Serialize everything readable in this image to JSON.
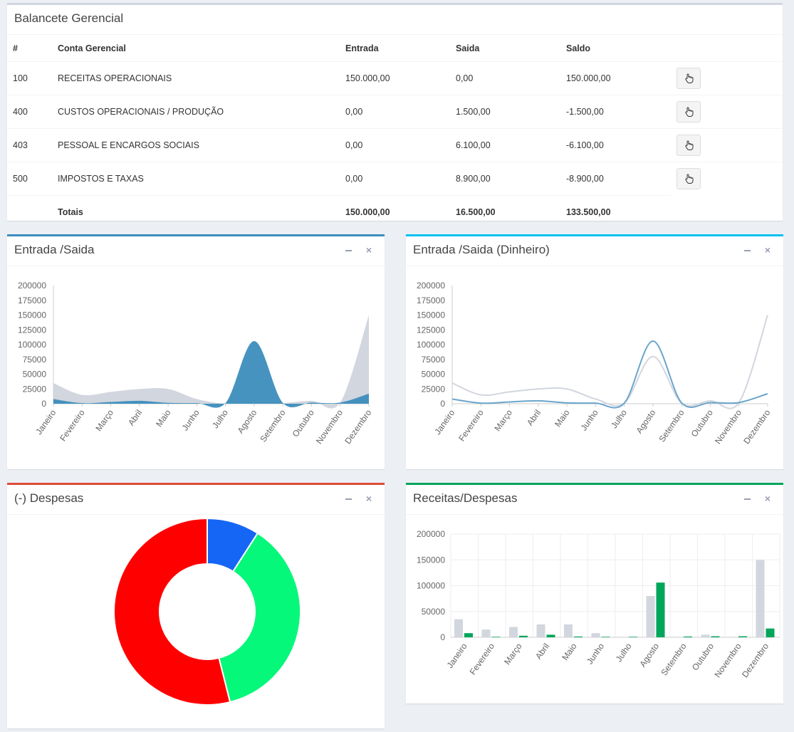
{
  "balancete": {
    "title": "Balancete Gerencial",
    "headers": [
      "#",
      "Conta Gerencial",
      "Entrada",
      "Saida",
      "Saldo"
    ],
    "rows": [
      {
        "code": "100",
        "account": "RECEITAS OPERACIONAIS",
        "entrada": "150.000,00",
        "saida": "0,00",
        "saldo": "150.000,00"
      },
      {
        "code": "400",
        "account": "CUSTOS OPERACIONAIS / PRODUÇÃO",
        "entrada": "0,00",
        "saida": "1.500,00",
        "saldo": "-1.500,00"
      },
      {
        "code": "403",
        "account": "PESSOAL E ENCARGOS SOCIAIS",
        "entrada": "0,00",
        "saida": "6.100,00",
        "saldo": "-6.100,00"
      },
      {
        "code": "500",
        "account": "IMPOSTOS E TAXAS",
        "entrada": "0,00",
        "saida": "8.900,00",
        "saldo": "-8.900,00"
      }
    ],
    "totals": {
      "label": "Totais",
      "entrada": "150.000,00",
      "saida": "16.500,00",
      "saldo": "133.500,00"
    },
    "row_action_icon": "hand-pointer-icon"
  },
  "panels": {
    "entrada_saida": {
      "title": "Entrada /Saida",
      "accent": "#3c8dbc"
    },
    "entrada_saida_dinheiro": {
      "title": "Entrada /Saida (Dinheiro)",
      "accent": "#00c0ef"
    },
    "despesas": {
      "title": "(-) Despesas",
      "accent": "#dd4b39"
    },
    "receitas_despesas": {
      "title": "Receitas/Despesas",
      "accent": "#00a65a"
    }
  },
  "chart_data": [
    {
      "id": "entrada_saida",
      "type": "area",
      "categories": [
        "Janeiro",
        "Fevereiro",
        "Março",
        "Abril",
        "Maio",
        "Junho",
        "Julho",
        "Agosto",
        "Setembro",
        "Outubro",
        "Novembro",
        "Dezembro"
      ],
      "series": [
        {
          "values": [
            35000,
            15000,
            20000,
            25000,
            25000,
            8000,
            0,
            0,
            1000,
            5000,
            2000,
            150000
          ],
          "color": "#d2d6de"
        },
        {
          "values": [
            8000,
            1000,
            3000,
            5000,
            1500,
            1000,
            1000,
            106000,
            1500,
            2000,
            2000,
            17000
          ],
          "color": "#3c8dbc"
        }
      ],
      "ylim": [
        0,
        200000
      ],
      "yticks": [
        "200000",
        "175000",
        "150000",
        "125000",
        "100000",
        "75000",
        "50000",
        "25000",
        "0"
      ],
      "grid": false
    },
    {
      "id": "entrada_saida_dinheiro",
      "type": "line",
      "categories": [
        "Janeiro",
        "Fevereiro",
        "Março",
        "Abril",
        "Maio",
        "Junho",
        "Julho",
        "Agosto",
        "Setembro",
        "Outubro",
        "Novembro",
        "Dezembro"
      ],
      "series": [
        {
          "values": [
            35000,
            15000,
            20000,
            25000,
            25000,
            8000,
            1000,
            80000,
            1000,
            5000,
            2000,
            150000
          ],
          "color": "#d2d6de"
        },
        {
          "values": [
            8000,
            1000,
            3000,
            5000,
            1500,
            1000,
            1000,
            106000,
            1500,
            2000,
            2000,
            17000
          ],
          "color": "#6ba5cc"
        }
      ],
      "ylim": [
        0,
        200000
      ],
      "yticks": [
        "200000",
        "175000",
        "150000",
        "125000",
        "100000",
        "75000",
        "50000",
        "25000",
        "0"
      ],
      "grid": false
    },
    {
      "id": "despesas",
      "type": "pie",
      "donut": true,
      "slices": [
        {
          "value": 1500,
          "color": "#1666f5"
        },
        {
          "value": 6100,
          "color": "#06f87a"
        },
        {
          "value": 8900,
          "color": "#ff0000"
        }
      ]
    },
    {
      "id": "receitas_despesas",
      "type": "bar",
      "categories": [
        "Janeiro",
        "Fevereiro",
        "Março",
        "Abril",
        "Maio",
        "Junho",
        "Julho",
        "Agosto",
        "Setembro",
        "Outubro",
        "Novembro",
        "Dezembro"
      ],
      "series": [
        {
          "values": [
            35000,
            15000,
            20000,
            25000,
            25000,
            8000,
            1000,
            80000,
            1000,
            5000,
            1000,
            150000
          ],
          "color": "#d2d6de"
        },
        {
          "values": [
            8000,
            1000,
            3000,
            5000,
            1500,
            1000,
            1000,
            106000,
            1500,
            2000,
            2000,
            17000
          ],
          "color": "#00a65a"
        }
      ],
      "ylim": [
        0,
        200000
      ],
      "yticks": [
        "200000",
        "150000",
        "100000",
        "50000",
        "0"
      ],
      "grid": true
    }
  ]
}
